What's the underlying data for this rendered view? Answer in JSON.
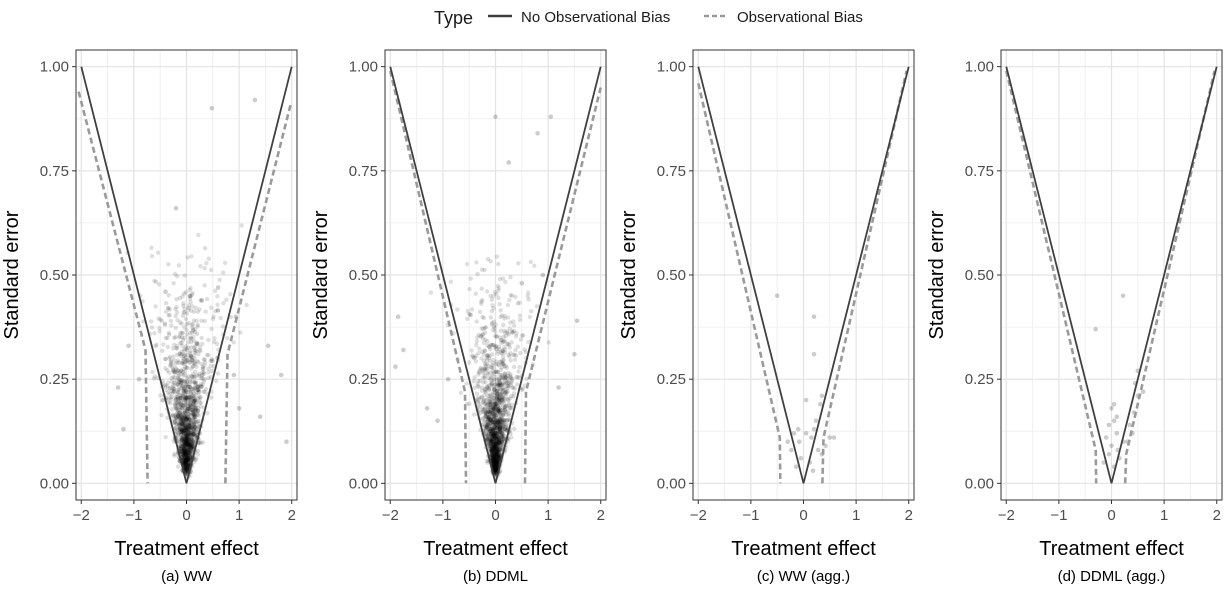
{
  "legend": {
    "title": "Type",
    "items": [
      {
        "label": "No Observational Bias",
        "style": "solid",
        "color": "#404040"
      },
      {
        "label": "Observational Bias",
        "style": "dashed",
        "color": "#9a9a9a"
      }
    ]
  },
  "chart_data": [
    {
      "type": "scatter",
      "caption": "(a) WW",
      "xlabel": "Treatment effect",
      "ylabel": "Standard error",
      "xlim": [
        -2.1,
        2.1
      ],
      "ylim": [
        -0.04,
        1.04
      ],
      "xticks": [
        -2,
        -1,
        0,
        1,
        2
      ],
      "yticks": [
        0.0,
        0.25,
        0.5,
        0.75,
        1.0
      ],
      "ytick_labels": [
        "0.00",
        "0.25",
        "0.50",
        "0.75",
        "1.00"
      ],
      "xtick_labels": [
        "−2",
        "−1",
        "0",
        "1",
        "2"
      ],
      "grid": true,
      "funnel_solid": [
        [
          -2,
          1.0
        ],
        [
          0,
          0.0
        ],
        [
          2,
          1.0
        ]
      ],
      "funnel_dashed": [
        [
          -2.05,
          0.94
        ],
        [
          -0.78,
          0.32
        ],
        [
          -0.74,
          0.0
        ],
        null,
        [
          0.74,
          0.0
        ],
        [
          0.78,
          0.31
        ],
        [
          1.98,
          0.91
        ]
      ],
      "points_description": "dense cloud of ~1500 estimates centered near 0, SE 0.02–0.66",
      "points": [
        [
          0.48,
          0.9
        ],
        [
          -0.2,
          0.66
        ],
        [
          -0.4,
          0.46
        ],
        [
          0.6,
          0.47
        ],
        [
          1.3,
          0.92
        ],
        [
          1.55,
          0.33
        ],
        [
          1.0,
          0.18
        ],
        [
          -1.3,
          0.23
        ],
        [
          -1.2,
          0.13
        ],
        [
          -1.1,
          0.33
        ],
        [
          1.8,
          0.26
        ],
        [
          1.9,
          0.1
        ],
        [
          -0.9,
          0.25
        ],
        [
          0.9,
          0.26
        ],
        [
          1.4,
          0.16
        ]
      ],
      "density": {
        "n": 1400,
        "sd_x_per_se": 1.0,
        "se_mode": 0.1,
        "se_max": 0.62
      }
    },
    {
      "type": "scatter",
      "caption": "(b) DDML",
      "xlabel": "Treatment effect",
      "ylabel": "Standard error",
      "xlim": [
        -2.1,
        2.1
      ],
      "ylim": [
        -0.04,
        1.04
      ],
      "xticks": [
        -2,
        -1,
        0,
        1,
        2
      ],
      "yticks": [
        0.0,
        0.25,
        0.5,
        0.75,
        1.0
      ],
      "ytick_labels": [
        "0.00",
        "0.25",
        "0.50",
        "0.75",
        "1.00"
      ],
      "xtick_labels": [
        "−2",
        "−1",
        "0",
        "1",
        "2"
      ],
      "grid": true,
      "funnel_solid": [
        [
          -2,
          1.0
        ],
        [
          0,
          0.0
        ],
        [
          2,
          1.0
        ]
      ],
      "funnel_dashed": [
        [
          -2.0,
          0.99
        ],
        [
          -0.58,
          0.22
        ],
        [
          -0.56,
          0.0
        ],
        null,
        [
          0.56,
          0.0
        ],
        [
          0.58,
          0.22
        ],
        [
          2.0,
          0.95
        ]
      ],
      "points": [
        [
          0.0,
          0.88
        ],
        [
          0.8,
          0.84
        ],
        [
          1.05,
          0.88
        ],
        [
          0.25,
          0.77
        ],
        [
          -1.75,
          0.32
        ],
        [
          -1.85,
          0.4
        ],
        [
          -1.9,
          0.28
        ],
        [
          1.55,
          0.39
        ],
        [
          1.5,
          0.31
        ],
        [
          -1.3,
          0.18
        ],
        [
          -1.1,
          0.15
        ],
        [
          1.2,
          0.23
        ],
        [
          -0.9,
          0.25
        ],
        [
          0.9,
          0.5
        ],
        [
          0.5,
          0.48
        ]
      ],
      "density": {
        "n": 1400,
        "sd_x_per_se": 0.9,
        "se_mode": 0.09,
        "se_max": 0.55
      }
    },
    {
      "type": "scatter",
      "caption": "(c) WW (agg.)",
      "xlabel": "Treatment effect",
      "ylabel": "Standard error",
      "xlim": [
        -2.1,
        2.1
      ],
      "ylim": [
        -0.04,
        1.04
      ],
      "xticks": [
        -2,
        -1,
        0,
        1,
        2
      ],
      "yticks": [
        0.0,
        0.25,
        0.5,
        0.75,
        1.0
      ],
      "ytick_labels": [
        "0.00",
        "0.25",
        "0.50",
        "0.75",
        "1.00"
      ],
      "xtick_labels": [
        "−2",
        "−1",
        "0",
        "1",
        "2"
      ],
      "grid": true,
      "funnel_solid": [
        [
          -2,
          1.0
        ],
        [
          0,
          0.0
        ],
        [
          2,
          1.0
        ]
      ],
      "funnel_dashed": [
        [
          -2.0,
          0.96
        ],
        [
          -0.45,
          0.11
        ],
        [
          -0.44,
          0.0
        ],
        null,
        [
          0.36,
          0.0
        ],
        [
          0.38,
          0.11
        ],
        [
          1.96,
          0.99
        ]
      ],
      "points": [
        [
          -0.5,
          0.45
        ],
        [
          0.2,
          0.4
        ],
        [
          0.2,
          0.31
        ],
        [
          0.05,
          0.2
        ],
        [
          0.35,
          0.21
        ],
        [
          0.32,
          0.19
        ],
        [
          0.24,
          0.15
        ],
        [
          0.2,
          0.13
        ],
        [
          0.58,
          0.11
        ],
        [
          0.5,
          0.11
        ],
        [
          -0.18,
          0.12
        ],
        [
          -0.08,
          0.1
        ],
        [
          -0.23,
          0.08
        ],
        [
          -0.1,
          0.13
        ],
        [
          0.05,
          0.12
        ],
        [
          0.15,
          0.11
        ],
        [
          0.28,
          0.08
        ],
        [
          0.35,
          0.07
        ],
        [
          -0.05,
          0.06
        ],
        [
          0.12,
          0.05
        ],
        [
          -0.14,
          0.04
        ],
        [
          0.18,
          0.03
        ],
        [
          0.42,
          0.09
        ],
        [
          -0.3,
          0.1
        ]
      ],
      "density": {
        "n": 0
      }
    },
    {
      "type": "scatter",
      "caption": "(d) DDML (agg.)",
      "xlabel": "Treatment effect",
      "ylabel": "Standard error",
      "xlim": [
        -2.1,
        2.1
      ],
      "ylim": [
        -0.04,
        1.04
      ],
      "xticks": [
        -2,
        -1,
        0,
        1,
        2
      ],
      "yticks": [
        0.0,
        0.25,
        0.5,
        0.75,
        1.0
      ],
      "ytick_labels": [
        "0.00",
        "0.25",
        "0.50",
        "0.75",
        "1.00"
      ],
      "xtick_labels": [
        "−2",
        "−1",
        "0",
        "1",
        "2"
      ],
      "grid": true,
      "funnel_solid": [
        [
          -2,
          1.0
        ],
        [
          0,
          0.0
        ],
        [
          2,
          1.0
        ]
      ],
      "funnel_dashed": [
        [
          -2.0,
          0.99
        ],
        [
          -0.3,
          0.08
        ],
        [
          -0.29,
          0.0
        ],
        null,
        [
          0.26,
          0.0
        ],
        [
          0.28,
          0.07
        ],
        [
          1.96,
          0.99
        ]
      ],
      "points": [
        [
          -0.3,
          0.37
        ],
        [
          0.22,
          0.45
        ],
        [
          0.5,
          0.27
        ],
        [
          0.6,
          0.22
        ],
        [
          0.45,
          0.24
        ],
        [
          0.5,
          0.21
        ],
        [
          0.43,
          0.17
        ],
        [
          0.35,
          0.14
        ],
        [
          0.4,
          0.12
        ],
        [
          0.05,
          0.19
        ],
        [
          0.0,
          0.18
        ],
        [
          0.05,
          0.15
        ],
        [
          -0.05,
          0.14
        ],
        [
          0.1,
          0.12
        ],
        [
          -0.1,
          0.11
        ],
        [
          0.0,
          0.09
        ],
        [
          0.12,
          0.08
        ],
        [
          0.15,
          0.06
        ],
        [
          -0.05,
          0.07
        ],
        [
          0.22,
          0.1
        ],
        [
          -0.15,
          0.05
        ],
        [
          0.05,
          0.04
        ],
        [
          0.3,
          0.1
        ],
        [
          0.1,
          0.16
        ]
      ],
      "density": {
        "n": 0
      }
    }
  ]
}
